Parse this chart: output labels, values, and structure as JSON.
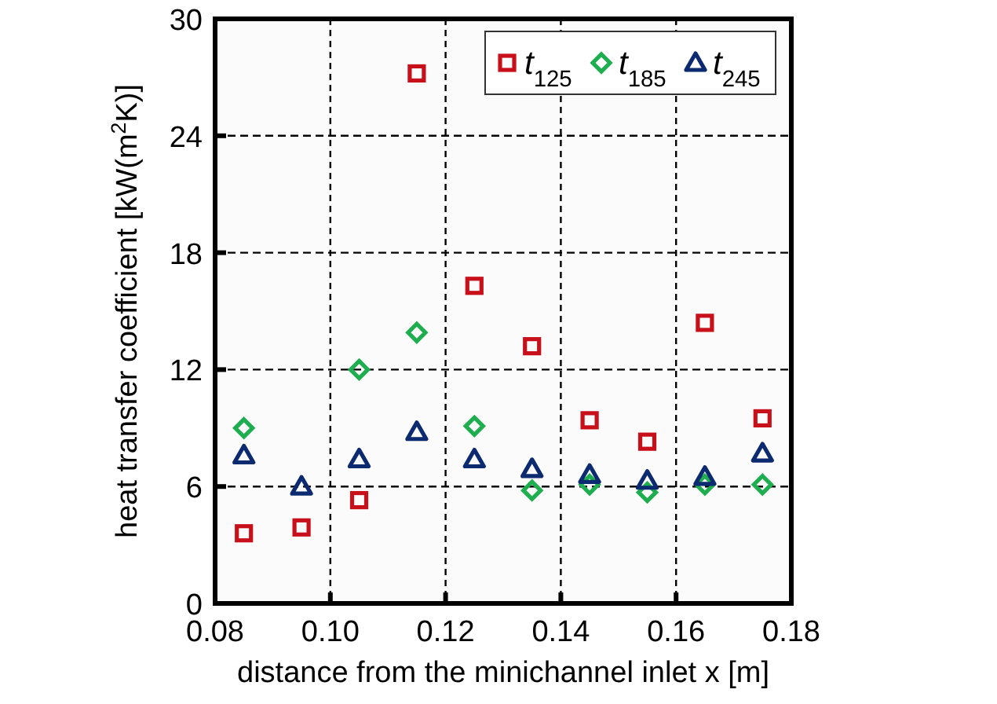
{
  "chart_data": {
    "type": "scatter",
    "xlabel": "distance from the minichannel inlet x [m]",
    "ylabel": "heat transfer coefficient [kW(m$^{2}$K)]",
    "x": [
      0.085,
      0.095,
      0.105,
      0.115,
      0.125,
      0.135,
      0.145,
      0.155,
      0.165,
      0.175
    ],
    "series": [
      {
        "name": "t$_{125}$",
        "color": "#c8101a",
        "marker": "square",
        "values": [
          3.6,
          3.9,
          5.3,
          27.2,
          16.3,
          13.2,
          9.4,
          8.3,
          14.4,
          9.5
        ]
      },
      {
        "name": "t$_{185}$",
        "color": "#1fae4f",
        "marker": "diamond",
        "values": [
          9.0,
          null,
          12.0,
          13.9,
          9.1,
          5.8,
          6.1,
          5.7,
          6.1,
          6.1
        ]
      },
      {
        "name": "t$_{245}$",
        "color": "#0c2a70",
        "marker": "triangle",
        "values": [
          7.6,
          6.0,
          7.4,
          8.8,
          7.4,
          6.9,
          6.6,
          6.3,
          6.5,
          7.7
        ]
      }
    ],
    "xlim": [
      0.08,
      0.18
    ],
    "xticks": [
      {
        "value": 0.08,
        "label": "0.08"
      },
      {
        "value": 0.1,
        "label": "0.10"
      },
      {
        "value": 0.12,
        "label": "0.12"
      },
      {
        "value": 0.14,
        "label": "0.14"
      },
      {
        "value": 0.16,
        "label": "0.16"
      },
      {
        "value": 0.18,
        "label": "0.18"
      }
    ],
    "ylim": [
      0,
      30
    ],
    "yticks": [
      0,
      6,
      12,
      18,
      24,
      30
    ],
    "grid": true,
    "legend": "top right"
  }
}
